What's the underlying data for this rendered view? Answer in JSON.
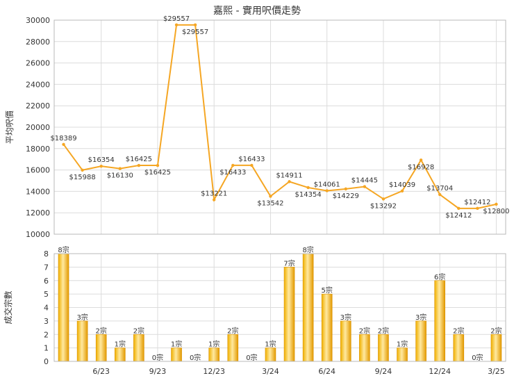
{
  "title": "嘉熙 - 實用呎價走勢",
  "chart_data": [
    {
      "type": "line",
      "ylabel": "平均呎價",
      "ylim": [
        10000,
        30000
      ],
      "yticks": [
        10000,
        12000,
        14000,
        16000,
        18000,
        20000,
        22000,
        24000,
        26000,
        28000,
        30000
      ],
      "ytick_labels": [
        "10000",
        "12000",
        "14000",
        "16000",
        "18000",
        "20000",
        "22000",
        "24000",
        "26000",
        "28000",
        "30000"
      ],
      "grid": true,
      "series": [
        {
          "values": [
            18389,
            15988,
            16354,
            16130,
            16425,
            16425,
            29557,
            29557,
            13221,
            16433,
            16433,
            13542,
            14911,
            14354,
            14061,
            14229,
            14445,
            13292,
            14039,
            16928,
            13704,
            12412,
            12412,
            12800
          ],
          "labels": [
            "$18389",
            "$15988",
            "$16354",
            "$16130",
            "$16425",
            "$16425",
            "$29557",
            "$29557",
            "$13221",
            "$16433",
            "$16433",
            "$13542",
            "$14911",
            "$14354",
            "$14061",
            "$14229",
            "$14445",
            "$13292",
            "$14039",
            "$16928",
            "$13704",
            "$12412",
            "$12412",
            "$12800"
          ],
          "color": "#f5a623"
        }
      ]
    },
    {
      "type": "bar",
      "ylabel": "成交宗數",
      "ylim": [
        0,
        8
      ],
      "yticks": [
        0,
        1,
        2,
        3,
        4,
        5,
        6,
        7,
        8
      ],
      "ytick_labels": [
        "0",
        "1",
        "2",
        "3",
        "4",
        "5",
        "6",
        "7",
        "8"
      ],
      "grid": true,
      "values": [
        8,
        3,
        2,
        1,
        2,
        0,
        1,
        0,
        1,
        2,
        0,
        1,
        7,
        8,
        5,
        3,
        2,
        2,
        1,
        3,
        6,
        2,
        0,
        2
      ],
      "labels": [
        "8宗",
        "3宗",
        "2宗",
        "1宗",
        "2宗",
        "0宗",
        "1宗",
        "0宗",
        "1宗",
        "2宗",
        "0宗",
        "1宗",
        "7宗",
        "8宗",
        "5宗",
        "3宗",
        "2宗",
        "2宗",
        "1宗",
        "3宗",
        "6宗",
        "2宗",
        "0宗",
        "2宗"
      ],
      "x_tick_labels": [
        "6/23",
        "9/23",
        "12/23",
        "3/24",
        "6/24",
        "9/24",
        "12/24",
        "3/25"
      ],
      "color": "#f5a623"
    }
  ]
}
